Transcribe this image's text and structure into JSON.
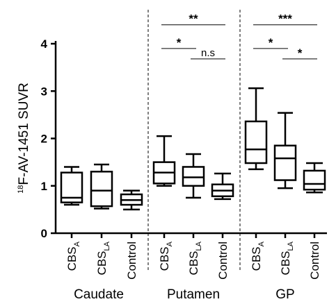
{
  "chart_data": {
    "type": "box",
    "ylabel": "F-AV-1451 SUVR",
    "ylabel_sup": "18",
    "ylim": [
      0,
      4
    ],
    "yticks": [
      "0",
      "1",
      "2",
      "3",
      "4"
    ],
    "groups": [
      {
        "name": "Caudate",
        "boxes": [
          {
            "label_main": "CBS",
            "label_sub": "A",
            "min": 0.6,
            "q1": 0.65,
            "median": 0.75,
            "q3": 1.28,
            "max": 1.4
          },
          {
            "label_main": "CBS",
            "label_sub": "LA",
            "min": 0.52,
            "q1": 0.57,
            "median": 0.9,
            "q3": 1.3,
            "max": 1.45
          },
          {
            "label_main": "Control",
            "label_sub": "",
            "min": 0.5,
            "q1": 0.6,
            "median": 0.7,
            "q3": 0.82,
            "max": 0.9
          }
        ],
        "significance": []
      },
      {
        "name": "Putamen",
        "boxes": [
          {
            "label_main": "CBS",
            "label_sub": "A",
            "min": 1.0,
            "q1": 1.05,
            "median": 1.28,
            "q3": 1.5,
            "max": 2.05
          },
          {
            "label_main": "CBS",
            "label_sub": "LA",
            "min": 0.75,
            "q1": 1.0,
            "median": 1.18,
            "q3": 1.4,
            "max": 1.67
          },
          {
            "label_main": "Control",
            "label_sub": "",
            "min": 0.72,
            "q1": 0.78,
            "median": 0.9,
            "q3": 1.03,
            "max": 1.26
          }
        ],
        "significance": [
          {
            "from": 0,
            "to": 2,
            "label": "**",
            "y": 4.4
          },
          {
            "from": 0,
            "to": 1,
            "label": "*",
            "y": 3.9
          },
          {
            "from": 1,
            "to": 2,
            "label": "n.s",
            "y": 3.68
          }
        ]
      },
      {
        "name": "GP",
        "boxes": [
          {
            "label_main": "CBS",
            "label_sub": "A",
            "min": 1.35,
            "q1": 1.48,
            "median": 1.77,
            "q3": 2.36,
            "max": 3.06
          },
          {
            "label_main": "CBS",
            "label_sub": "LA",
            "min": 0.95,
            "q1": 1.12,
            "median": 1.58,
            "q3": 1.85,
            "max": 2.54
          },
          {
            "label_main": "Control",
            "label_sub": "",
            "min": 0.86,
            "q1": 0.92,
            "median": 1.04,
            "q3": 1.32,
            "max": 1.48
          }
        ],
        "significance": [
          {
            "from": 0,
            "to": 2,
            "label": "***",
            "y": 4.4
          },
          {
            "from": 0,
            "to": 1,
            "label": "*",
            "y": 3.9
          },
          {
            "from": 1,
            "to": 2,
            "label": "*",
            "y": 3.68
          }
        ]
      }
    ]
  }
}
